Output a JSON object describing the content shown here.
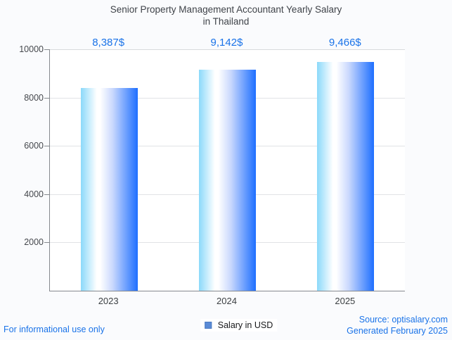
{
  "title": {
    "line1": "Senior Property Management Accountant Yearly Salary",
    "line2": "in Thailand"
  },
  "chart_data": {
    "type": "bar",
    "title": "Senior Property Management Accountant Yearly Salary in Thailand",
    "categories": [
      "2023",
      "2024",
      "2025"
    ],
    "values": [
      8387,
      9142,
      9466
    ],
    "value_labels": [
      "8,387$",
      "9,142$",
      "9,466$"
    ],
    "series_name": "Salary in USD",
    "xlabel": "",
    "ylabel": "",
    "ylim": [
      0,
      10000
    ],
    "yticks": [
      10000,
      8000,
      6000,
      4000,
      2000
    ],
    "ytick_labels": [
      "10000",
      "8000",
      "6000",
      "4000",
      "2000"
    ],
    "grid": true,
    "legend_position": "bottom",
    "bar_gradient": [
      "#8BD9FA",
      "#FFFFFF",
      "#C9D8FD",
      "#1E6FFF"
    ]
  },
  "legend": {
    "label": "Salary in USD",
    "marker_color": "#5B8BD6"
  },
  "footer": {
    "left": "For informational use only",
    "source": "Source: optisalary.com",
    "generated": "Generated February 2025"
  },
  "colors": {
    "accent_blue": "#1A73E8",
    "title_gray": "#3F4349",
    "tick_gray": "#45484D",
    "axis_gray": "#85898E",
    "grid_gray": "#E1E3E6",
    "page_bg": "#FAFBFD",
    "plot_bg": "#FFFFFF"
  }
}
